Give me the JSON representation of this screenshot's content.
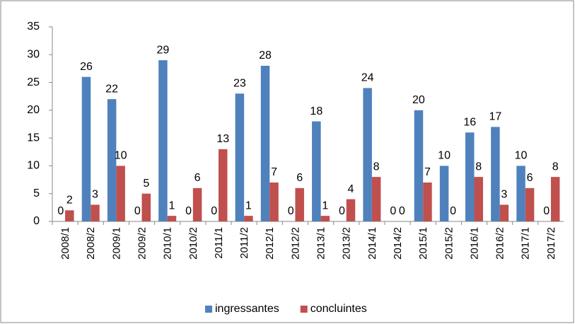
{
  "chart_data": {
    "type": "bar",
    "categories": [
      "2008/1",
      "2008/2",
      "2009/1",
      "2009/2",
      "2010/1",
      "2010/2",
      "2011/1",
      "2011/2",
      "2012/1",
      "2012/2",
      "2013/1",
      "2013/2",
      "2014/1",
      "2014/2",
      "2015/1",
      "2015/2",
      "2016/1",
      "2016/2",
      "2017/1",
      "2017/2"
    ],
    "series": [
      {
        "name": "ingressantes",
        "color": "#4f81bd",
        "values": [
          0,
          26,
          22,
          0,
          29,
          0,
          0,
          23,
          28,
          0,
          18,
          0,
          24,
          0,
          20,
          10,
          16,
          17,
          10,
          0
        ]
      },
      {
        "name": "concluintes",
        "color": "#c0504d",
        "values": [
          2,
          3,
          10,
          5,
          1,
          6,
          13,
          1,
          7,
          6,
          1,
          4,
          8,
          0,
          7,
          0,
          8,
          3,
          6,
          8
        ]
      }
    ],
    "ylim": [
      0,
      35
    ],
    "yticks": [
      0,
      5,
      10,
      15,
      20,
      25,
      30,
      35
    ],
    "legend": "bottom"
  }
}
